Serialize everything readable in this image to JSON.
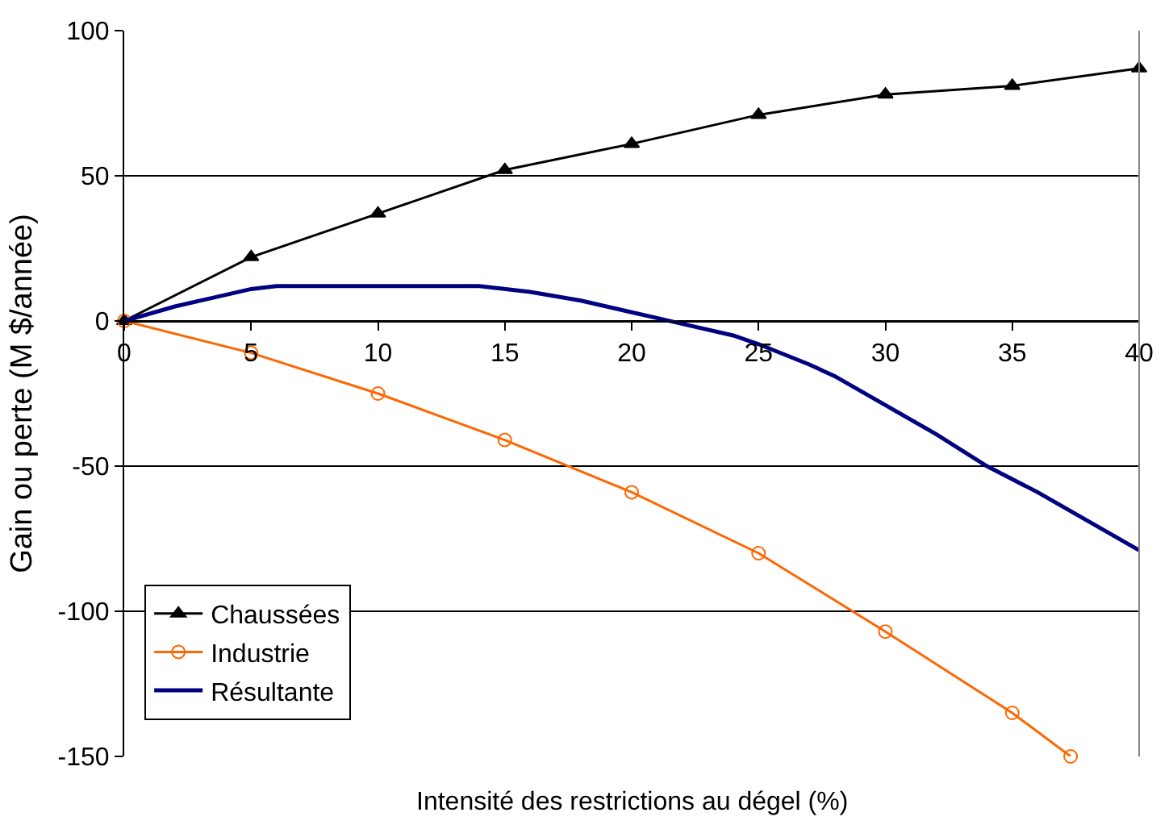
{
  "chart_data": {
    "type": "line",
    "xlabel": "Intensité des restrictions au dégel (%)",
    "ylabel": "Gain ou perte (M $/année)",
    "xlim": [
      0,
      40
    ],
    "xticks": [
      0,
      5,
      10,
      15,
      20,
      25,
      30,
      35,
      40
    ],
    "ylim": [
      -150,
      100
    ],
    "yticks": [
      100,
      50,
      0,
      -50,
      -100,
      -150
    ],
    "grid": "y",
    "legend": "bottom left",
    "series": [
      {
        "name": "Chaussées",
        "color": "#000000",
        "marker": "triangle",
        "x": [
          0,
          5,
          10,
          15,
          20,
          25,
          30,
          35,
          40
        ],
        "values": [
          0,
          22,
          37,
          52,
          61,
          71,
          78,
          81,
          87
        ]
      },
      {
        "name": "Industrie",
        "color": "#ff6600",
        "marker": "circle",
        "x": [
          0,
          5,
          10,
          15,
          20,
          25,
          30,
          35,
          37.3
        ],
        "values": [
          0,
          -11,
          -25,
          -41,
          -59,
          -80,
          -107,
          -135,
          -150
        ]
      },
      {
        "name": "Résultante",
        "color": "#000080",
        "marker": "none",
        "x": [
          0,
          2,
          4,
          5,
          6,
          10,
          14,
          16,
          18,
          20,
          21,
          22,
          24,
          25,
          27,
          28,
          30,
          32,
          34,
          36,
          38,
          40
        ],
        "values": [
          0,
          5,
          9,
          11,
          12,
          12,
          12,
          10,
          7,
          3,
          1,
          -1,
          -5,
          -8,
          -15,
          -19,
          -29,
          -39,
          -50,
          -59,
          -69,
          -79
        ]
      }
    ]
  }
}
